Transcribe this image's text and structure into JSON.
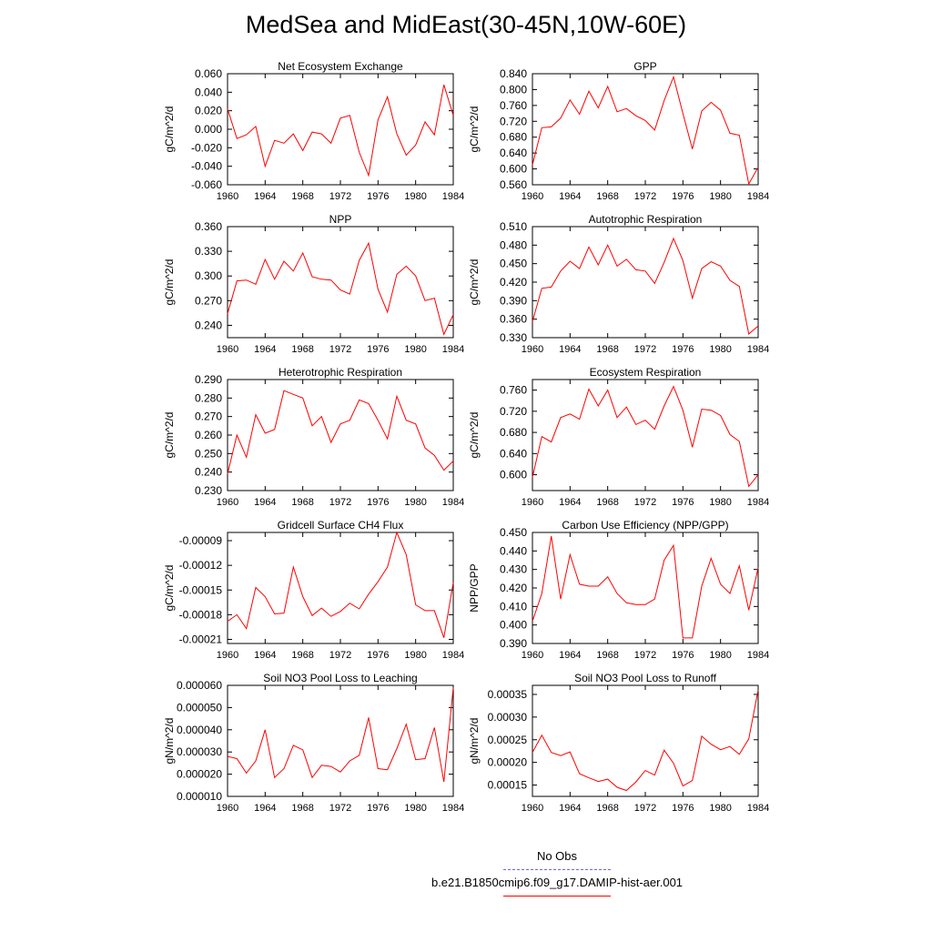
{
  "title": "MedSea and MidEast(30-45N,10W-60E)",
  "x_ticks": [
    "1960",
    "1964",
    "1968",
    "1972",
    "1976",
    "1980",
    "1984"
  ],
  "years": [
    1960,
    1961,
    1962,
    1963,
    1964,
    1965,
    1966,
    1967,
    1968,
    1969,
    1970,
    1971,
    1972,
    1973,
    1974,
    1975,
    1976,
    1977,
    1978,
    1979,
    1980,
    1981,
    1982,
    1983,
    1984
  ],
  "line_color": "#ff0000",
  "legend": {
    "obs_label": "No Obs",
    "obs_color": "#6666ff",
    "model_label": "b.e21.B1850cmip6.f09_g17.DAMIP-hist-aer.001",
    "model_color": "#ff0000"
  },
  "chart_data": [
    {
      "type": "line",
      "title": "Net Ecosystem Exchange",
      "ylabel": "gC/m^2/d",
      "ylim": [
        -0.06,
        0.06
      ],
      "yticks": [
        "0.060",
        "0.040",
        "0.020",
        "0.000",
        "-0.020",
        "-0.040",
        "-0.060"
      ],
      "ytick_values": [
        0.06,
        0.04,
        0.02,
        0.0,
        -0.02,
        -0.04,
        -0.06
      ],
      "values": [
        0.022,
        -0.01,
        -0.006,
        0.003,
        -0.04,
        -0.012,
        -0.015,
        -0.005,
        -0.023,
        -0.003,
        -0.005,
        -0.015,
        0.012,
        0.015,
        -0.025,
        -0.05,
        0.01,
        0.035,
        -0.005,
        -0.028,
        -0.017,
        0.008,
        -0.006,
        0.048,
        0.015
      ]
    },
    {
      "type": "line",
      "title": "GPP",
      "ylabel": "gC/m^2/d",
      "ylim": [
        0.56,
        0.84
      ],
      "yticks": [
        "0.840",
        "0.800",
        "0.760",
        "0.720",
        "0.680",
        "0.640",
        "0.600",
        "0.560"
      ],
      "ytick_values": [
        0.84,
        0.8,
        0.76,
        0.72,
        0.68,
        0.64,
        0.6,
        0.56
      ],
      "values": [
        0.61,
        0.704,
        0.706,
        0.728,
        0.774,
        0.738,
        0.796,
        0.754,
        0.808,
        0.744,
        0.752,
        0.734,
        0.722,
        0.698,
        0.772,
        0.832,
        0.74,
        0.65,
        0.746,
        0.768,
        0.748,
        0.69,
        0.685,
        0.562,
        0.604
      ]
    },
    {
      "type": "line",
      "title": "NPP",
      "ylabel": "gC/m^2/d",
      "ylim": [
        0.225,
        0.36
      ],
      "yticks": [
        "0.360",
        "0.330",
        "0.300",
        "0.270",
        "0.240"
      ],
      "ytick_values": [
        0.36,
        0.33,
        0.3,
        0.27,
        0.24
      ],
      "values": [
        0.254,
        0.294,
        0.295,
        0.29,
        0.32,
        0.296,
        0.318,
        0.306,
        0.328,
        0.299,
        0.296,
        0.295,
        0.283,
        0.278,
        0.319,
        0.34,
        0.284,
        0.256,
        0.302,
        0.312,
        0.3,
        0.27,
        0.273,
        0.229,
        0.253
      ]
    },
    {
      "type": "line",
      "title": "Autotrophic Respiration",
      "ylabel": "gC/m^2/d",
      "ylim": [
        0.33,
        0.51
      ],
      "yticks": [
        "0.510",
        "0.480",
        "0.450",
        "0.420",
        "0.390",
        "0.360",
        "0.330"
      ],
      "ytick_values": [
        0.51,
        0.48,
        0.45,
        0.42,
        0.39,
        0.36,
        0.33
      ],
      "values": [
        0.356,
        0.41,
        0.412,
        0.438,
        0.454,
        0.442,
        0.477,
        0.448,
        0.48,
        0.446,
        0.457,
        0.44,
        0.438,
        0.418,
        0.452,
        0.491,
        0.455,
        0.394,
        0.442,
        0.453,
        0.446,
        0.423,
        0.413,
        0.336,
        0.349
      ]
    },
    {
      "type": "line",
      "title": "Heterotrophic Respiration",
      "ylabel": "gC/m^2/d",
      "ylim": [
        0.23,
        0.29
      ],
      "yticks": [
        "0.290",
        "0.280",
        "0.270",
        "0.260",
        "0.250",
        "0.240",
        "0.230"
      ],
      "ytick_values": [
        0.29,
        0.28,
        0.27,
        0.26,
        0.25,
        0.24,
        0.23
      ],
      "values": [
        0.239,
        0.26,
        0.248,
        0.271,
        0.261,
        0.263,
        0.284,
        0.282,
        0.28,
        0.265,
        0.27,
        0.256,
        0.266,
        0.268,
        0.279,
        0.277,
        0.268,
        0.258,
        0.281,
        0.268,
        0.266,
        0.253,
        0.249,
        0.241,
        0.246
      ]
    },
    {
      "type": "line",
      "title": "Ecosystem Respiration",
      "ylabel": "gC/m^2/d",
      "ylim": [
        0.57,
        0.78
      ],
      "yticks": [
        "0.760",
        "0.720",
        "0.680",
        "0.640",
        "0.600"
      ],
      "ytick_values": [
        0.76,
        0.72,
        0.68,
        0.64,
        0.6
      ],
      "values": [
        0.595,
        0.672,
        0.662,
        0.708,
        0.715,
        0.705,
        0.762,
        0.73,
        0.76,
        0.708,
        0.728,
        0.695,
        0.703,
        0.686,
        0.73,
        0.767,
        0.722,
        0.652,
        0.724,
        0.722,
        0.712,
        0.676,
        0.663,
        0.578,
        0.6
      ]
    },
    {
      "type": "line",
      "title": "Gridcell Surface CH4 Flux",
      "ylabel": "gC/m^2/d",
      "ylim": [
        -0.000215,
        -8e-05
      ],
      "yticks": [
        "-0.00009",
        "-0.00012",
        "-0.00015",
        "-0.00018",
        "-0.00021"
      ],
      "ytick_values": [
        -9e-05,
        -0.00012,
        -0.00015,
        -0.00018,
        -0.00021
      ],
      "values": [
        -0.000188,
        -0.00018,
        -0.000197,
        -0.000147,
        -0.000158,
        -0.000179,
        -0.000178,
        -0.000122,
        -0.000158,
        -0.000181,
        -0.000172,
        -0.000182,
        -0.000176,
        -0.000166,
        -0.000173,
        -0.000155,
        -0.00014,
        -0.000122,
        -8e-05,
        -0.000107,
        -0.000168,
        -0.000175,
        -0.000175,
        -0.000208,
        -0.000141
      ]
    },
    {
      "type": "line",
      "title": "Carbon Use Efficiency (NPP/GPP)",
      "ylabel": "NPP/GPP",
      "ylim": [
        0.39,
        0.45
      ],
      "yticks": [
        "0.450",
        "0.440",
        "0.430",
        "0.420",
        "0.410",
        "0.400",
        "0.390"
      ],
      "ytick_values": [
        0.45,
        0.44,
        0.43,
        0.42,
        0.41,
        0.4,
        0.39
      ],
      "values": [
        0.402,
        0.417,
        0.448,
        0.414,
        0.438,
        0.422,
        0.421,
        0.421,
        0.426,
        0.417,
        0.412,
        0.411,
        0.411,
        0.414,
        0.435,
        0.443,
        0.393,
        0.393,
        0.421,
        0.436,
        0.422,
        0.417,
        0.432,
        0.408,
        0.431
      ]
    },
    {
      "type": "line",
      "title": "Soil NO3 Pool Loss to Leaching",
      "ylabel": "gN/m^2/d",
      "ylim": [
        1e-05,
        6e-05
      ],
      "yticks": [
        "0.000060",
        "0.000050",
        "0.000040",
        "0.000030",
        "0.000020",
        "0.000010"
      ],
      "ytick_values": [
        6e-05,
        5e-05,
        4e-05,
        3e-05,
        2e-05,
        1e-05
      ],
      "values": [
        2.8e-05,
        2.7e-05,
        2.05e-05,
        2.6e-05,
        4e-05,
        1.85e-05,
        2.25e-05,
        3.3e-05,
        3.1e-05,
        1.85e-05,
        2.4e-05,
        2.35e-05,
        2.1e-05,
        2.6e-05,
        2.85e-05,
        4.55e-05,
        2.25e-05,
        2.2e-05,
        3.15e-05,
        4.25e-05,
        2.65e-05,
        2.7e-05,
        4.1e-05,
        1.65e-05,
        5.9e-05
      ]
    },
    {
      "type": "line",
      "title": "Soil NO3 Pool Loss to Runoff",
      "ylabel": "gN/m^2/d",
      "ylim": [
        0.000125,
        0.00037
      ],
      "yticks": [
        "0.00035",
        "0.00030",
        "0.00025",
        "0.00020",
        "0.00015"
      ],
      "ytick_values": [
        0.00035,
        0.0003,
        0.00025,
        0.0002,
        0.00015
      ],
      "values": [
        0.000222,
        0.00026,
        0.000222,
        0.000215,
        0.000223,
        0.000175,
        0.000166,
        0.000158,
        0.000163,
        0.000145,
        0.000138,
        0.000157,
        0.000182,
        0.000172,
        0.000227,
        0.000198,
        0.000148,
        0.00016,
        0.000258,
        0.00024,
        0.000228,
        0.000235,
        0.000218,
        0.000252,
        0.00036
      ]
    }
  ]
}
